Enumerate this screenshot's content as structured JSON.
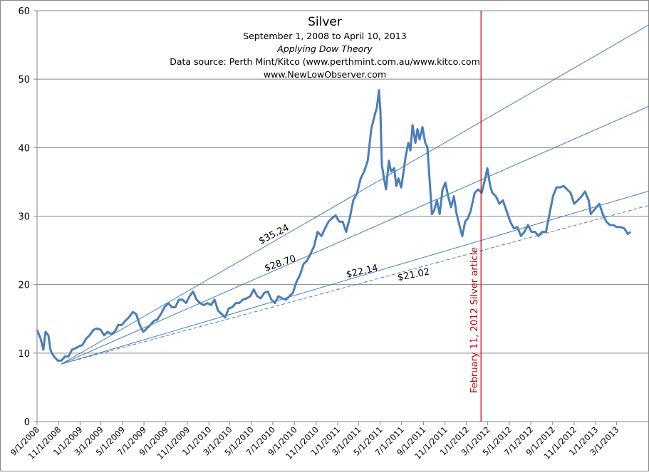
{
  "chart_data": {
    "type": "line",
    "title": "Silver",
    "subtitle_lines": [
      "September 1, 2008  to April 10, 2013",
      "Applying Dow Theory",
      "Data source: Perth Mint/Kitco (www.perthmint.com.au/www.kitco.com",
      "www.NewLowObserver.com"
    ],
    "start_date": "2008-09-01",
    "x_unit": "days since start_date",
    "xlim_days": [
      0,
      1736
    ],
    "ylim": [
      0,
      60
    ],
    "y_ticks": [
      0,
      10,
      20,
      30,
      40,
      50,
      60
    ],
    "x_tick_labels": [
      "9/1/2008",
      "11/1/2008",
      "1/1/2009",
      "3/1/2009",
      "5/1/2009",
      "7/1/2009",
      "9/1/2009",
      "11/1/2009",
      "1/1/2010",
      "3/1/2010",
      "5/1/2010",
      "7/1/2010",
      "9/1/2010",
      "11/1/2010",
      "1/1/2011",
      "3/1/2011",
      "5/1/2011",
      "7/1/2011",
      "9/1/2011",
      "11/1/2011",
      "1/1/2012",
      "3/1/2012",
      "5/1/2012",
      "7/1/2012",
      "9/1/2012",
      "11/1/2012",
      "1/1/2013",
      "3/1/2013"
    ],
    "grid": "horizontal",
    "series": [
      {
        "name": "Silver",
        "color": "#4A7EBB",
        "points": [
          [
            0,
            13.4
          ],
          [
            10,
            12.1
          ],
          [
            18,
            10.5
          ],
          [
            24,
            13.1
          ],
          [
            32,
            12.6
          ],
          [
            38,
            10.5
          ],
          [
            42,
            10.0
          ],
          [
            48,
            9.5
          ],
          [
            59,
            8.9
          ],
          [
            69,
            8.9
          ],
          [
            79,
            9.5
          ],
          [
            89,
            9.5
          ],
          [
            99,
            10.5
          ],
          [
            109,
            10.7
          ],
          [
            119,
            11.0
          ],
          [
            129,
            11.2
          ],
          [
            139,
            12.1
          ],
          [
            149,
            12.6
          ],
          [
            160,
            13.4
          ],
          [
            170,
            13.6
          ],
          [
            180,
            13.4
          ],
          [
            190,
            12.6
          ],
          [
            200,
            13.1
          ],
          [
            210,
            12.8
          ],
          [
            220,
            13.1
          ],
          [
            230,
            14.1
          ],
          [
            240,
            14.1
          ],
          [
            250,
            14.7
          ],
          [
            260,
            15.2
          ],
          [
            271,
            16.0
          ],
          [
            281,
            15.7
          ],
          [
            291,
            14.1
          ],
          [
            301,
            13.1
          ],
          [
            311,
            13.6
          ],
          [
            321,
            14.1
          ],
          [
            331,
            14.7
          ],
          [
            341,
            14.9
          ],
          [
            351,
            15.7
          ],
          [
            361,
            16.7
          ],
          [
            372,
            17.3
          ],
          [
            382,
            16.7
          ],
          [
            392,
            16.7
          ],
          [
            402,
            17.8
          ],
          [
            412,
            17.8
          ],
          [
            422,
            17.3
          ],
          [
            432,
            18.3
          ],
          [
            442,
            19.0
          ],
          [
            452,
            17.8
          ],
          [
            462,
            17.3
          ],
          [
            472,
            17.0
          ],
          [
            483,
            17.3
          ],
          [
            493,
            17.0
          ],
          [
            503,
            17.8
          ],
          [
            513,
            16.2
          ],
          [
            523,
            15.7
          ],
          [
            533,
            15.2
          ],
          [
            543,
            16.5
          ],
          [
            553,
            16.7
          ],
          [
            563,
            17.3
          ],
          [
            573,
            17.3
          ],
          [
            583,
            17.8
          ],
          [
            594,
            18.0
          ],
          [
            604,
            18.3
          ],
          [
            614,
            19.3
          ],
          [
            624,
            18.3
          ],
          [
            634,
            18.0
          ],
          [
            644,
            18.8
          ],
          [
            654,
            19.0
          ],
          [
            664,
            17.8
          ],
          [
            674,
            17.3
          ],
          [
            684,
            18.3
          ],
          [
            695,
            18.0
          ],
          [
            705,
            17.8
          ],
          [
            715,
            18.3
          ],
          [
            725,
            18.8
          ],
          [
            735,
            20.4
          ],
          [
            745,
            21.4
          ],
          [
            755,
            23.0
          ],
          [
            765,
            23.5
          ],
          [
            775,
            24.5
          ],
          [
            785,
            25.6
          ],
          [
            795,
            27.7
          ],
          [
            806,
            27.1
          ],
          [
            816,
            28.2
          ],
          [
            826,
            29.2
          ],
          [
            836,
            29.7
          ],
          [
            846,
            30.1
          ],
          [
            856,
            29.2
          ],
          [
            866,
            29.2
          ],
          [
            876,
            27.7
          ],
          [
            886,
            29.7
          ],
          [
            896,
            32.3
          ],
          [
            907,
            33.4
          ],
          [
            917,
            35.5
          ],
          [
            927,
            36.5
          ],
          [
            937,
            38.1
          ],
          [
            947,
            42.7
          ],
          [
            957,
            44.8
          ],
          [
            963,
            45.9
          ],
          [
            969,
            48.4
          ],
          [
            973,
            45.3
          ],
          [
            977,
            37.5
          ],
          [
            983,
            35.5
          ],
          [
            989,
            33.9
          ],
          [
            997,
            38.1
          ],
          [
            1003,
            36.5
          ],
          [
            1012,
            37.0
          ],
          [
            1018,
            34.4
          ],
          [
            1024,
            35.5
          ],
          [
            1032,
            34.2
          ],
          [
            1038,
            36.3
          ],
          [
            1044,
            38.6
          ],
          [
            1052,
            40.7
          ],
          [
            1058,
            39.6
          ],
          [
            1064,
            43.3
          ],
          [
            1072,
            40.7
          ],
          [
            1078,
            42.7
          ],
          [
            1084,
            41.2
          ],
          [
            1092,
            43.0
          ],
          [
            1100,
            40.7
          ],
          [
            1106,
            40.1
          ],
          [
            1112,
            35.5
          ],
          [
            1119,
            30.3
          ],
          [
            1125,
            30.8
          ],
          [
            1133,
            32.3
          ],
          [
            1141,
            30.3
          ],
          [
            1149,
            33.9
          ],
          [
            1157,
            34.9
          ],
          [
            1165,
            32.9
          ],
          [
            1173,
            31.3
          ],
          [
            1181,
            32.9
          ],
          [
            1189,
            30.3
          ],
          [
            1199,
            28.2
          ],
          [
            1205,
            27.1
          ],
          [
            1213,
            29.2
          ],
          [
            1221,
            29.7
          ],
          [
            1229,
            30.8
          ],
          [
            1240,
            33.4
          ],
          [
            1250,
            33.9
          ],
          [
            1260,
            33.4
          ],
          [
            1270,
            35.5
          ],
          [
            1276,
            37.0
          ],
          [
            1284,
            34.4
          ],
          [
            1290,
            33.4
          ],
          [
            1300,
            32.9
          ],
          [
            1310,
            31.8
          ],
          [
            1320,
            32.3
          ],
          [
            1330,
            30.8
          ],
          [
            1341,
            29.2
          ],
          [
            1351,
            28.2
          ],
          [
            1361,
            28.4
          ],
          [
            1371,
            27.1
          ],
          [
            1381,
            27.7
          ],
          [
            1391,
            28.7
          ],
          [
            1401,
            27.7
          ],
          [
            1411,
            27.7
          ],
          [
            1421,
            27.1
          ],
          [
            1431,
            27.7
          ],
          [
            1442,
            27.7
          ],
          [
            1452,
            30.3
          ],
          [
            1462,
            32.9
          ],
          [
            1472,
            34.2
          ],
          [
            1482,
            34.2
          ],
          [
            1492,
            34.4
          ],
          [
            1502,
            33.9
          ],
          [
            1512,
            33.4
          ],
          [
            1522,
            31.8
          ],
          [
            1532,
            32.3
          ],
          [
            1543,
            32.9
          ],
          [
            1553,
            33.6
          ],
          [
            1563,
            32.3
          ],
          [
            1569,
            30.3
          ],
          [
            1577,
            30.8
          ],
          [
            1585,
            31.3
          ],
          [
            1593,
            31.8
          ],
          [
            1603,
            30.3
          ],
          [
            1613,
            29.2
          ],
          [
            1623,
            28.7
          ],
          [
            1633,
            28.7
          ],
          [
            1643,
            28.4
          ],
          [
            1654,
            28.4
          ],
          [
            1664,
            28.2
          ],
          [
            1674,
            27.4
          ],
          [
            1682,
            27.7
          ]
        ]
      }
    ],
    "trend_lines": [
      {
        "label": "$35.24",
        "start": [
          69,
          8.4
        ],
        "end": [
          1736,
          58.0
        ],
        "dashed": false
      },
      {
        "label": "$28.70",
        "start": [
          69,
          8.4
        ],
        "end": [
          1736,
          46.1
        ],
        "dashed": false
      },
      {
        "label": "$22.14",
        "start": [
          69,
          8.4
        ],
        "end": [
          1736,
          33.7
        ],
        "dashed": false
      },
      {
        "label": "$21.02",
        "start": [
          69,
          8.4
        ],
        "end": [
          1736,
          31.6
        ],
        "dashed": true
      }
    ],
    "trend_color": "#4A7EBB",
    "annotation": {
      "date": "2012-02-11",
      "label": "February 11, 2012  Silver article",
      "color": "#C00000"
    },
    "grid_color": "#868686"
  }
}
